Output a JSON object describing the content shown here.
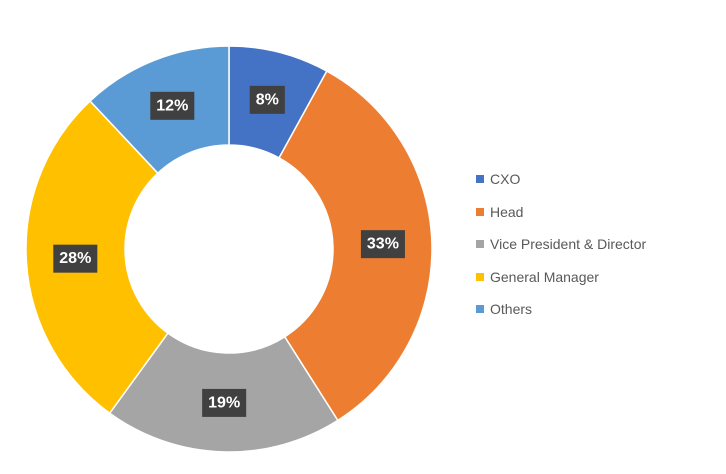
{
  "chart_data": {
    "type": "pie",
    "variant": "donut",
    "categories": [
      "CXO",
      "Head",
      "Vice President & Director",
      "General Manager",
      "Others"
    ],
    "values": [
      8,
      33,
      19,
      28,
      12
    ],
    "labels": [
      "8%",
      "33%",
      "19%",
      "28%",
      "12%"
    ],
    "colors": [
      "#4472C4",
      "#ED7D31",
      "#A5A5A5",
      "#FFC000",
      "#5B9BD5"
    ],
    "data_label_background": "#404040",
    "data_label_color": "#FFFFFF",
    "legend_position": "right",
    "title": ""
  },
  "legend": {
    "items": [
      {
        "label": "CXO",
        "color": "#4472C4"
      },
      {
        "label": "Head",
        "color": "#ED7D31"
      },
      {
        "label": "Vice President & Director",
        "color": "#A5A5A5"
      },
      {
        "label": "General Manager",
        "color": "#FFC000"
      },
      {
        "label": "Others",
        "color": "#5B9BD5"
      }
    ]
  }
}
